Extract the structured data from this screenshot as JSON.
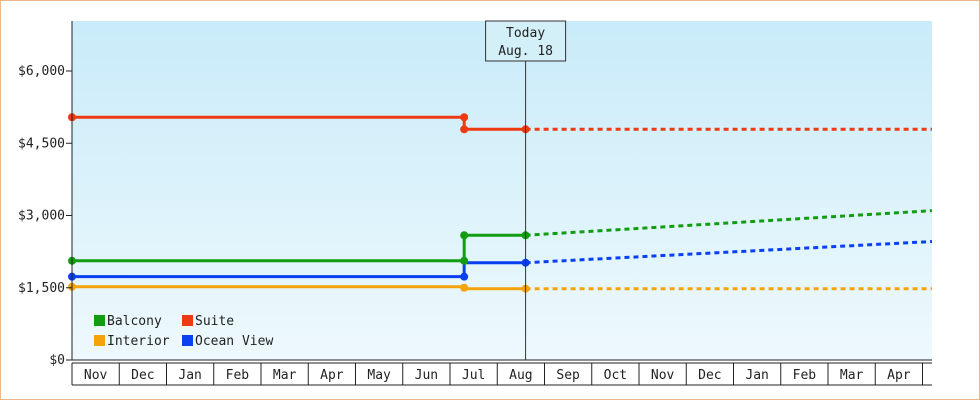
{
  "chart_data": {
    "type": "line",
    "today_marker": {
      "line1": "Today",
      "line2": "Aug. 18",
      "x": 9.6
    },
    "x_tick_labels": [
      "Nov",
      "Dec",
      "Jan",
      "Feb",
      "Mar",
      "Apr",
      "May",
      "Jun",
      "Jul",
      "Aug",
      "Sep",
      "Oct",
      "Nov",
      "Dec",
      "Jan",
      "Feb",
      "Mar",
      "Apr"
    ],
    "x_axis_note": "x in months since start of the first Nov shown; tick labels centered in each month",
    "xlim": [
      0,
      18.2
    ],
    "ylim": [
      0,
      7000
    ],
    "y_ticks": [
      {
        "value": 0,
        "label": "$0"
      },
      {
        "value": 1500,
        "label": "$1,500"
      },
      {
        "value": 3000,
        "label": "$3,000"
      },
      {
        "value": 4500,
        "label": "$4,500"
      },
      {
        "value": 6000,
        "label": "$6,000"
      }
    ],
    "series": [
      {
        "name": "Suite",
        "color": "#ee3a12",
        "actual": [
          [
            0,
            5040
          ],
          [
            8.3,
            5040
          ],
          [
            8.3,
            4790
          ],
          [
            9.6,
            4790
          ]
        ],
        "points": [
          [
            0,
            5040
          ],
          [
            8.3,
            5040
          ],
          [
            8.3,
            4790
          ],
          [
            9.6,
            4790
          ]
        ],
        "forecast": [
          [
            9.6,
            4790
          ],
          [
            18.2,
            4790
          ]
        ]
      },
      {
        "name": "Balcony",
        "color": "#119c11",
        "actual": [
          [
            0,
            2060
          ],
          [
            8.3,
            2060
          ],
          [
            8.3,
            2590
          ],
          [
            9.6,
            2590
          ]
        ],
        "points": [
          [
            0,
            2060
          ],
          [
            8.3,
            2060
          ],
          [
            8.3,
            2590
          ],
          [
            9.6,
            2590
          ]
        ],
        "forecast": [
          [
            9.6,
            2590
          ],
          [
            18.2,
            3100
          ]
        ]
      },
      {
        "name": "Ocean View",
        "color": "#0a3ff2",
        "actual": [
          [
            0,
            1730
          ],
          [
            8.3,
            1730
          ],
          [
            8.3,
            2020
          ],
          [
            9.6,
            2020
          ]
        ],
        "points": [
          [
            0,
            1730
          ],
          [
            8.3,
            1730
          ],
          [
            9.6,
            2020
          ]
        ],
        "forecast": [
          [
            9.6,
            2020
          ],
          [
            18.2,
            2460
          ]
        ]
      },
      {
        "name": "Interior",
        "color": "#f5a30a",
        "actual": [
          [
            0,
            1520
          ],
          [
            8.3,
            1520
          ],
          [
            8.3,
            1480
          ],
          [
            9.6,
            1480
          ]
        ],
        "points": [
          [
            0,
            1520
          ],
          [
            8.3,
            1500
          ],
          [
            9.6,
            1480
          ]
        ],
        "forecast": [
          [
            9.6,
            1480
          ],
          [
            18.2,
            1480
          ]
        ]
      }
    ],
    "legend": {
      "placement": "bottom-left",
      "order": [
        "Balcony",
        "Suite",
        "Interior",
        "Ocean View"
      ]
    },
    "grid": false,
    "background": {
      "top": "#c9ebf9",
      "bottom": "#eef9fd"
    }
  }
}
